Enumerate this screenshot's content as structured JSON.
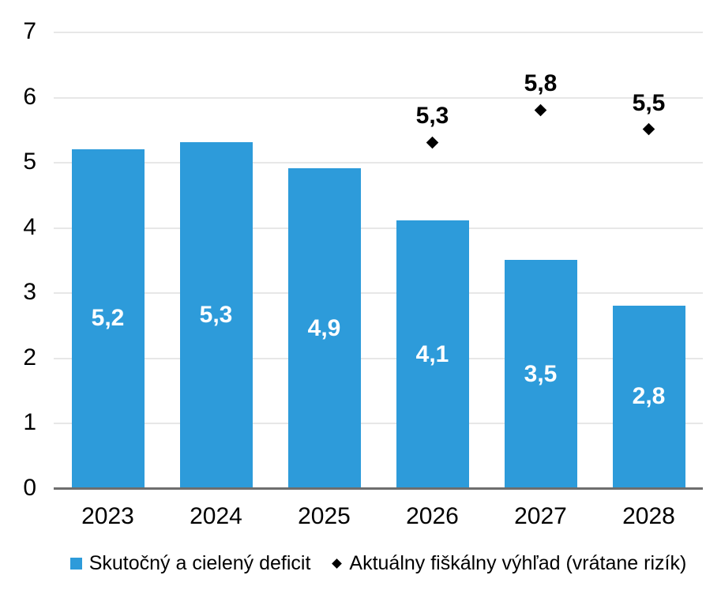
{
  "chart_data": {
    "type": "bar",
    "categories": [
      "2023",
      "2024",
      "2025",
      "2026",
      "2027",
      "2028"
    ],
    "series": [
      {
        "name": "Skutočný a cielený deficit",
        "type": "bar",
        "color": "#2d9bda",
        "values": [
          5.2,
          5.3,
          4.9,
          4.1,
          3.5,
          2.8
        ],
        "value_labels": [
          "5,2",
          "5,3",
          "4,9",
          "4,1",
          "3,5",
          "2,8"
        ]
      },
      {
        "name": "Aktuálny fiškálny výhľad (vrátane rizík)",
        "type": "scatter",
        "marker": "diamond",
        "color": "#000000",
        "values": [
          null,
          null,
          null,
          5.3,
          5.8,
          5.5
        ],
        "value_labels": [
          "",
          "",
          "",
          "5,3",
          "5,8",
          "5,5"
        ]
      }
    ],
    "xlabel": "",
    "ylabel": "",
    "title": "",
    "y_axis": {
      "min": 0,
      "max": 7,
      "step": 1,
      "tick_labels": [
        "0",
        "1",
        "2",
        "3",
        "4",
        "5",
        "6",
        "7"
      ]
    },
    "grid": true,
    "legend_position": "bottom"
  },
  "colors": {
    "bar_fill": "#2d9bda",
    "marker_fill": "#000000",
    "bar_label_text": "#ffffff",
    "gridline": "#e7e7e7",
    "axis_line": "#6e6e6e",
    "text": "#000000",
    "background": "#ffffff"
  }
}
